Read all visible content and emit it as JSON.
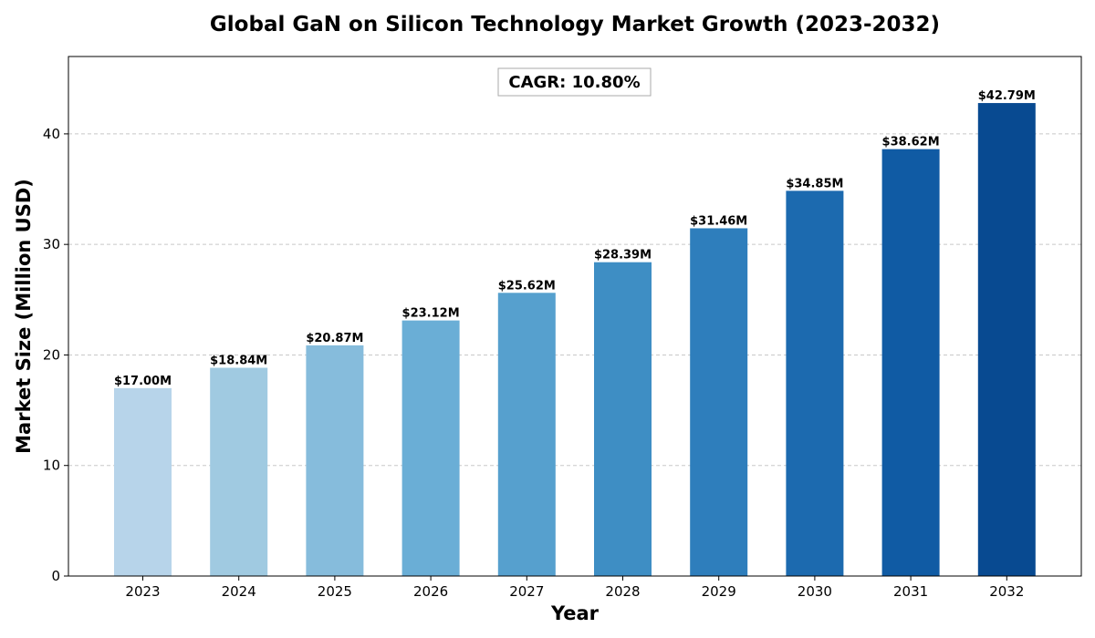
{
  "chart_data": {
    "type": "bar",
    "title": "Global GaN on Silicon Technology Market Growth (2023-2032)",
    "xlabel": "Year",
    "ylabel": "Market Size (Million USD)",
    "categories": [
      "2023",
      "2024",
      "2025",
      "2026",
      "2027",
      "2028",
      "2029",
      "2030",
      "2031",
      "2032"
    ],
    "values": [
      17.0,
      18.84,
      20.87,
      23.12,
      25.62,
      28.39,
      31.46,
      34.85,
      38.62,
      42.79
    ],
    "value_labels": [
      "$17.00M",
      "$18.84M",
      "$20.87M",
      "$23.12M",
      "$25.62M",
      "$28.39M",
      "$31.46M",
      "$34.85M",
      "$38.62M",
      "$42.79M"
    ],
    "colors": [
      "#b7d4ea",
      "#a0cae1",
      "#86bcdc",
      "#6aaed6",
      "#56a0ce",
      "#3e8ec4",
      "#2e7ebc",
      "#1c6aaf",
      "#105ba4",
      "#084a91"
    ],
    "ylim": [
      0,
      47
    ],
    "yticks": [
      0,
      10,
      20,
      30,
      40
    ],
    "grid": true,
    "annotation": "CAGR: 10.80%"
  }
}
